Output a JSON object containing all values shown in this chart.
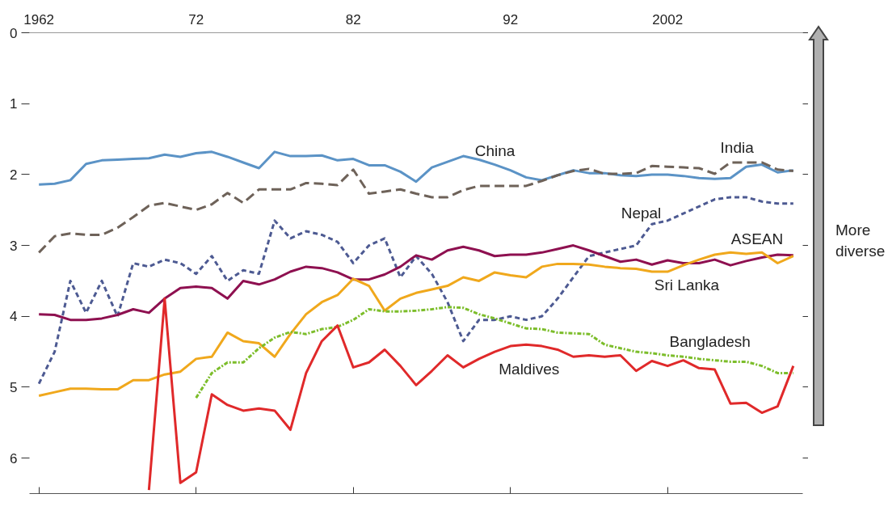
{
  "chart_data": {
    "type": "line",
    "xlim": [
      1961.4,
      2010.6
    ],
    "ylim": [
      6.5,
      0
    ],
    "xticks": [
      {
        "value": 1962,
        "label": "1962"
      },
      {
        "value": 1972,
        "label": "72"
      },
      {
        "value": 1982,
        "label": "82"
      },
      {
        "value": 1992,
        "label": "92"
      },
      {
        "value": 2002,
        "label": "2002"
      }
    ],
    "yticks": [
      0,
      1,
      2,
      3,
      4,
      5,
      6
    ],
    "grid": false,
    "series": [
      {
        "name": "China",
        "color": "#5b93c6",
        "line_style": "solid",
        "x": [
          1962,
          1963,
          1964,
          1965,
          1966,
          1967,
          1968,
          1969,
          1970,
          1971,
          1972,
          1973,
          1974,
          1975,
          1976,
          1977,
          1978,
          1979,
          1980,
          1981,
          1982,
          1983,
          1984,
          1985,
          1986,
          1987,
          1988,
          1989,
          1990,
          1991,
          1992,
          1993,
          1994,
          1995,
          1996,
          1997,
          1998,
          1999,
          2000,
          2001,
          2002,
          2003,
          2004,
          2005,
          2006,
          2007,
          2008,
          2009,
          2010
        ],
        "values": [
          2.14,
          2.13,
          2.08,
          1.85,
          1.8,
          1.79,
          1.78,
          1.77,
          1.72,
          1.75,
          1.7,
          1.68,
          1.75,
          1.83,
          1.91,
          1.68,
          1.74,
          1.74,
          1.73,
          1.8,
          1.78,
          1.87,
          1.87,
          1.96,
          2.1,
          1.9,
          1.82,
          1.74,
          1.79,
          1.86,
          1.94,
          2.04,
          2.08,
          2.01,
          1.94,
          1.98,
          1.98,
          2.01,
          2.02,
          2.0,
          2.0,
          2.02,
          2.05,
          2.06,
          2.05,
          1.89,
          1.86,
          1.97,
          1.94
        ]
      },
      {
        "name": "India",
        "color": "#6e6259",
        "line_style": "dashed",
        "x": [
          1962,
          1963,
          1964,
          1965,
          1966,
          1967,
          1968,
          1969,
          1970,
          1971,
          1972,
          1973,
          1974,
          1975,
          1976,
          1977,
          1978,
          1979,
          1980,
          1981,
          1982,
          1983,
          1984,
          1985,
          1986,
          1987,
          1988,
          1989,
          1990,
          1991,
          1992,
          1993,
          1994,
          1995,
          1996,
          1997,
          1998,
          1999,
          2000,
          2001,
          2002,
          2003,
          2004,
          2005,
          2006,
          2007,
          2008,
          2009,
          2010
        ],
        "values": [
          3.1,
          2.87,
          2.83,
          2.85,
          2.85,
          2.75,
          2.6,
          2.44,
          2.4,
          2.45,
          2.5,
          2.42,
          2.26,
          2.4,
          2.21,
          2.21,
          2.21,
          2.12,
          2.13,
          2.15,
          1.93,
          2.27,
          2.24,
          2.21,
          2.27,
          2.32,
          2.32,
          2.22,
          2.16,
          2.16,
          2.16,
          2.16,
          2.09,
          2.01,
          1.95,
          1.92,
          1.99,
          1.99,
          1.98,
          1.88,
          1.89,
          1.9,
          1.91,
          1.99,
          1.83,
          1.83,
          1.83,
          1.93,
          1.95
        ]
      },
      {
        "name": "Nepal",
        "color": "#4d5a92",
        "line_style": "dotted",
        "x": [
          1962,
          1963,
          1964,
          1965,
          1966,
          1967,
          1968,
          1969,
          1970,
          1971,
          1972,
          1973,
          1974,
          1975,
          1976,
          1977,
          1978,
          1979,
          1980,
          1981,
          1982,
          1983,
          1984,
          1985,
          1986,
          1987,
          1988,
          1989,
          1990,
          1991,
          1992,
          1993,
          1994,
          1995,
          1996,
          1997,
          1998,
          1999,
          2000,
          2001,
          2002,
          2003,
          2004,
          2005,
          2006,
          2007,
          2008,
          2009,
          2010
        ],
        "values": [
          4.95,
          4.5,
          3.5,
          3.95,
          3.5,
          4.0,
          3.25,
          3.3,
          3.2,
          3.25,
          3.4,
          3.15,
          3.5,
          3.35,
          3.4,
          2.65,
          2.9,
          2.8,
          2.85,
          2.95,
          3.25,
          3.0,
          2.9,
          3.45,
          3.15,
          3.4,
          3.8,
          4.35,
          4.05,
          4.05,
          4.0,
          4.05,
          4.0,
          3.75,
          3.45,
          3.15,
          3.1,
          3.05,
          3.0,
          2.7,
          2.65,
          2.55,
          2.45,
          2.35,
          2.32,
          2.32,
          2.38,
          2.41,
          2.41
        ]
      },
      {
        "name": "ASEAN",
        "color": "#8e1050",
        "line_style": "solid",
        "x": [
          1962,
          1963,
          1964,
          1965,
          1966,
          1967,
          1968,
          1969,
          1970,
          1971,
          1972,
          1973,
          1974,
          1975,
          1976,
          1977,
          1978,
          1979,
          1980,
          1981,
          1982,
          1983,
          1984,
          1985,
          1986,
          1987,
          1988,
          1989,
          1990,
          1991,
          1992,
          1993,
          1994,
          1995,
          1996,
          1997,
          1998,
          1999,
          2000,
          2001,
          2002,
          2003,
          2004,
          2005,
          2006,
          2007,
          2008,
          2009,
          2010
        ],
        "values": [
          3.97,
          3.98,
          4.05,
          4.05,
          4.03,
          3.98,
          3.9,
          3.95,
          3.75,
          3.6,
          3.58,
          3.6,
          3.75,
          3.5,
          3.55,
          3.48,
          3.37,
          3.3,
          3.32,
          3.38,
          3.48,
          3.48,
          3.41,
          3.3,
          3.14,
          3.2,
          3.07,
          3.02,
          3.07,
          3.15,
          3.13,
          3.13,
          3.1,
          3.05,
          3.0,
          3.07,
          3.15,
          3.23,
          3.2,
          3.27,
          3.21,
          3.25,
          3.25,
          3.2,
          3.28,
          3.22,
          3.17,
          3.13,
          3.14
        ]
      },
      {
        "name": "Sri Lanka",
        "color": "#f0a81c",
        "line_style": "solid",
        "x": [
          1962,
          1963,
          1964,
          1965,
          1966,
          1967,
          1968,
          1969,
          1970,
          1971,
          1972,
          1973,
          1974,
          1975,
          1976,
          1977,
          1978,
          1979,
          1980,
          1981,
          1982,
          1983,
          1984,
          1985,
          1986,
          1987,
          1988,
          1989,
          1990,
          1991,
          1992,
          1993,
          1994,
          1995,
          1996,
          1997,
          1998,
          1999,
          2000,
          2001,
          2002,
          2003,
          2004,
          2005,
          2006,
          2007,
          2008,
          2009,
          2010
        ],
        "values": [
          5.12,
          5.07,
          5.02,
          5.02,
          5.03,
          5.03,
          4.9,
          4.9,
          4.82,
          4.78,
          4.6,
          4.57,
          4.23,
          4.35,
          4.38,
          4.57,
          4.25,
          3.97,
          3.8,
          3.7,
          3.47,
          3.57,
          3.92,
          3.75,
          3.67,
          3.62,
          3.57,
          3.45,
          3.5,
          3.38,
          3.42,
          3.45,
          3.3,
          3.26,
          3.26,
          3.27,
          3.3,
          3.32,
          3.33,
          3.37,
          3.37,
          3.28,
          3.2,
          3.13,
          3.1,
          3.12,
          3.1,
          3.25,
          3.15
        ]
      },
      {
        "name": "Bangladesh",
        "color": "#7cbd2a",
        "line_style": "dashdot",
        "x": [
          1972,
          1973,
          1974,
          1975,
          1976,
          1977,
          1978,
          1979,
          1980,
          1981,
          1982,
          1983,
          1984,
          1985,
          1986,
          1987,
          1988,
          1989,
          1990,
          1991,
          1992,
          1993,
          1994,
          1995,
          1996,
          1997,
          1998,
          1999,
          2000,
          2001,
          2002,
          2003,
          2004,
          2005,
          2006,
          2007,
          2008,
          2009,
          2010
        ],
        "values": [
          5.15,
          4.8,
          4.65,
          4.65,
          4.45,
          4.3,
          4.22,
          4.25,
          4.18,
          4.15,
          4.05,
          3.9,
          3.93,
          3.93,
          3.92,
          3.9,
          3.87,
          3.88,
          3.97,
          4.03,
          4.1,
          4.17,
          4.18,
          4.23,
          4.24,
          4.25,
          4.4,
          4.45,
          4.5,
          4.52,
          4.55,
          4.57,
          4.6,
          4.62,
          4.64,
          4.64,
          4.7,
          4.8,
          4.8
        ]
      },
      {
        "name": "Maldives",
        "color": "#e0292a",
        "line_style": "solid",
        "x": [
          1969,
          1970,
          1971,
          1972,
          1973,
          1974,
          1975,
          1976,
          1977,
          1978,
          1979,
          1980,
          1981,
          1982,
          1983,
          1984,
          1985,
          1986,
          1987,
          1988,
          1989,
          1990,
          1991,
          1992,
          1993,
          1994,
          1995,
          1996,
          1997,
          1998,
          1999,
          2000,
          2001,
          2002,
          2003,
          2004,
          2005,
          2006,
          2007,
          2008,
          2009,
          2010
        ],
        "values": [
          6.45,
          3.75,
          6.35,
          6.2,
          5.1,
          5.25,
          5.33,
          5.3,
          5.33,
          5.6,
          4.8,
          4.35,
          4.13,
          4.72,
          4.65,
          4.47,
          4.7,
          4.97,
          4.77,
          4.55,
          4.72,
          4.6,
          4.5,
          4.42,
          4.4,
          4.42,
          4.47,
          4.57,
          4.55,
          4.57,
          4.55,
          4.77,
          4.63,
          4.7,
          4.62,
          4.73,
          4.75,
          5.23,
          5.22,
          5.36,
          5.27,
          4.7
        ]
      }
    ],
    "annotations": [
      "More diverse"
    ]
  }
}
